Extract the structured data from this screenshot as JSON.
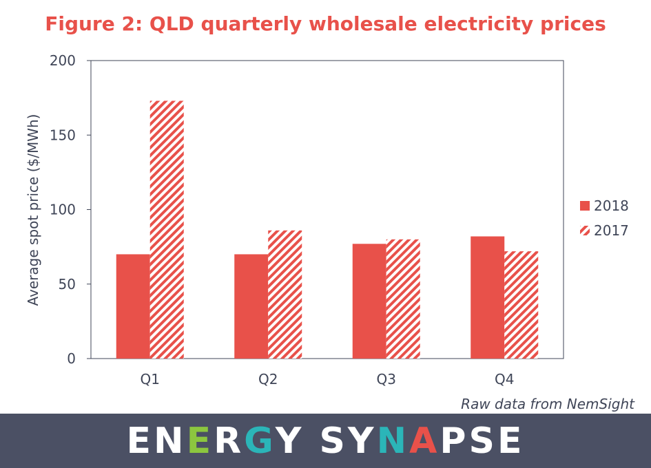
{
  "chart_data": {
    "type": "bar",
    "title": "Figure 2: QLD quarterly wholesale electricity prices",
    "xlabel": "",
    "ylabel": "Average spot price ($/MWh)",
    "categories": [
      "Q1",
      "Q2",
      "Q3",
      "Q4"
    ],
    "yticks": [
      "0",
      "50",
      "100",
      "150",
      "200"
    ],
    "ylim": [
      0,
      200
    ],
    "grid": false,
    "legend_position": "right",
    "series": [
      {
        "name": "2018",
        "values": [
          70,
          70,
          77,
          82
        ],
        "color": "#e8514a",
        "fill": "solid"
      },
      {
        "name": "2017",
        "values": [
          173,
          86,
          80,
          72
        ],
        "color": "#e8514a",
        "fill": "hatched"
      }
    ]
  },
  "source_note": "Raw data from NemSight",
  "footer": {
    "logo_text": "ENERGY SYNAPSE",
    "logo_letter_colors": [
      "#ffffff",
      "#ffffff",
      "#8cc63f",
      "#ffffff",
      "#2bb5b8",
      "#ffffff",
      "#ffffff",
      "#ffffff",
      "#ffffff",
      "#2bb5b8",
      "#e8514a",
      "#ffffff",
      "#ffffff",
      "#ffffff"
    ],
    "background_color": "#4b5064"
  }
}
